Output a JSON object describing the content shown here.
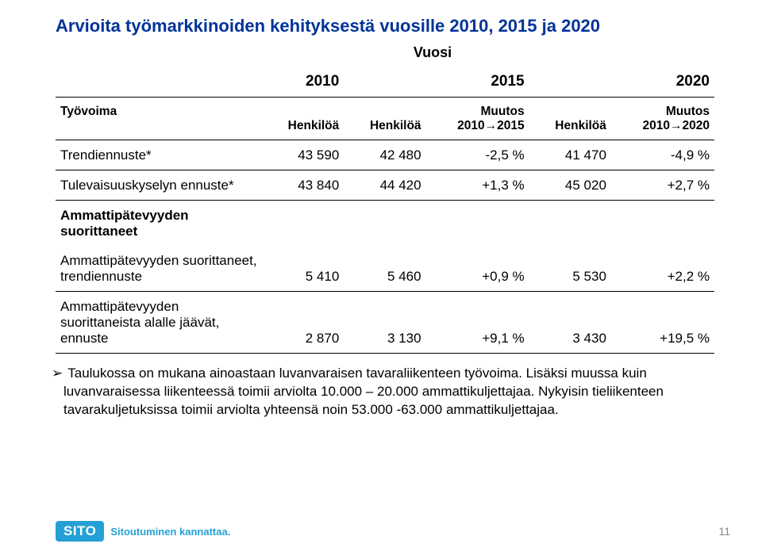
{
  "title": "Arvioita työmarkkinoiden kehityksestä vuosille 2010, 2015 ja 2020",
  "vuosi_heading": "Vuosi",
  "table": {
    "rowhead": "Työvoima",
    "years": [
      "2010",
      "2015",
      "2020"
    ],
    "col_headers": [
      "Henkilöä",
      "Henkilöä",
      "Muutos\n2010→2015",
      "Henkilöä",
      "Muutos\n2010→2020"
    ],
    "rows": [
      {
        "label": "Trendiennuste*",
        "cells": [
          "43 590",
          "42 480",
          "-2,5 %",
          "41 470",
          "-4,9 %"
        ]
      },
      {
        "label": "Tulevaisuuskyselyn ennuste*",
        "cells": [
          "43 840",
          "44 420",
          "+1,3 %",
          "45 020",
          "+2,7 %"
        ]
      },
      {
        "label": "Ammattipätevyyden suorittaneet",
        "cells": [
          "",
          "",
          "",
          "",
          ""
        ]
      },
      {
        "label": "Ammattipätevyyden suorittaneet, trendiennuste",
        "cells": [
          "5 410",
          "5 460",
          "+0,9 %",
          "5 530",
          "+2,2 %"
        ]
      },
      {
        "label": "Ammattipätevyyden suorittaneista alalle jäävät, ennuste",
        "cells": [
          "2 870",
          "3 130",
          "+9,1 %",
          "3 430",
          "+19,5 %"
        ]
      }
    ]
  },
  "footnote_arrow": "➢",
  "footnote": "Taulukossa on mukana ainoastaan luvanvaraisen tavaraliikenteen työvoima. Lisäksi muussa kuin luvanvaraisessa liikenteessä toimii arviolta 10.000 – 20.000 ammattikuljettajaa. Nykyisin tieliikenteen tavarakuljetuksissa toimii arviolta yhteensä noin 53.000 -63.000 ammattikuljettajaa.",
  "logo_badge": "SITO",
  "logo_tag": "Sitoutuminen kannattaa.",
  "page_number": "11",
  "colors": {
    "title": "#003399",
    "logo_bg": "#24a0d6",
    "logo_fg": "#ffffff",
    "pagenum": "#888888",
    "rule": "#000000",
    "background": "#ffffff"
  }
}
